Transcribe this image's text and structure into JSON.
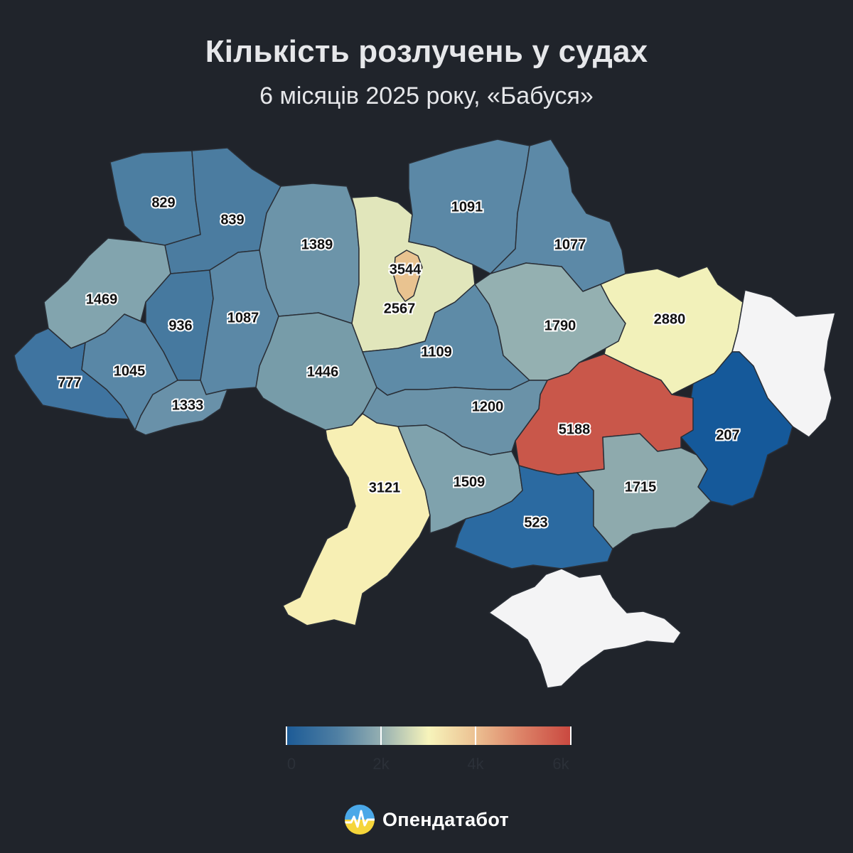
{
  "title": "Кількість розлучень у судах",
  "subtitle": "6 місяців 2025 року, «Бабуся»",
  "brand": {
    "name": "Опендатабот"
  },
  "legend": {
    "labels": [
      "0",
      "2k",
      "4k",
      "6k"
    ],
    "min": 0,
    "max": 6000
  },
  "colors": {
    "background": "#20242b",
    "no_data": "#f4f4f5",
    "scale": [
      "#1b5a96",
      "#4f7fa3",
      "#93aeb1",
      "#f7f4bb",
      "#ecc293",
      "#dd8468",
      "#c9473f"
    ]
  },
  "regions": [
    {
      "id": "volyn",
      "value": "829"
    },
    {
      "id": "rivne",
      "value": "839"
    },
    {
      "id": "zhytomyr",
      "value": "1389"
    },
    {
      "id": "kyiv-city",
      "value": "3544"
    },
    {
      "id": "kyiv-oblast",
      "value": "2567"
    },
    {
      "id": "chernihiv",
      "value": "1091"
    },
    {
      "id": "sumy",
      "value": "1077"
    },
    {
      "id": "lviv",
      "value": "1469"
    },
    {
      "id": "ternopil",
      "value": "936"
    },
    {
      "id": "khmelnytskyi",
      "value": "1087"
    },
    {
      "id": "cherkasy",
      "value": "1109"
    },
    {
      "id": "poltava",
      "value": "1790"
    },
    {
      "id": "kharkiv",
      "value": "2880"
    },
    {
      "id": "zakarpattia",
      "value": "777"
    },
    {
      "id": "ivano-frankivsk",
      "value": "1045"
    },
    {
      "id": "vinnytsia",
      "value": "1446"
    },
    {
      "id": "chernivtsi",
      "value": "1333"
    },
    {
      "id": "kirovohrad",
      "value": "1200"
    },
    {
      "id": "dnipro",
      "value": "5188"
    },
    {
      "id": "donetsk",
      "value": "207"
    },
    {
      "id": "odesa",
      "value": "3121"
    },
    {
      "id": "mykolaiv",
      "value": "1509"
    },
    {
      "id": "kherson",
      "value": "523"
    },
    {
      "id": "zaporizhzhia",
      "value": "1715"
    },
    {
      "id": "luhansk",
      "value": ""
    },
    {
      "id": "crimea",
      "value": ""
    }
  ]
}
